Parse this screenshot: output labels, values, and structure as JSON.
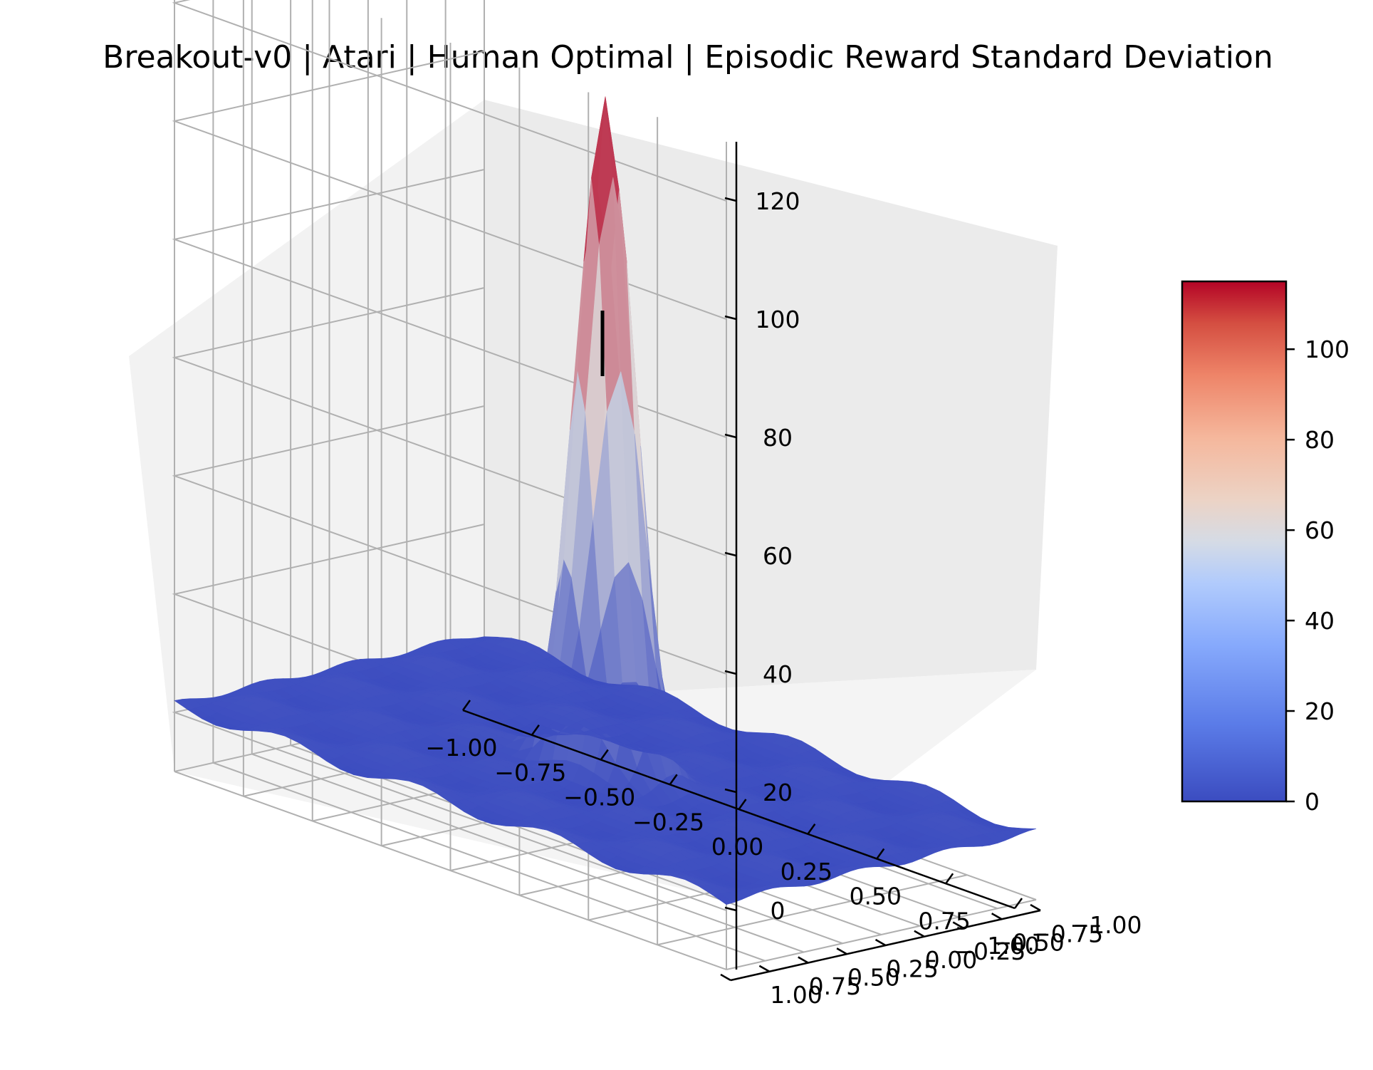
{
  "chart_data": {
    "type": "surface",
    "title": "Breakout-v0 | Atari | Human Optimal | Episodic Reward Standard Deviation",
    "colormap": "coolwarm",
    "colormap_low": "#3b4cc0",
    "colormap_mid": "#dddddd",
    "colormap_high": "#b40426",
    "xlim": [
      -1,
      1
    ],
    "ylim": [
      -1,
      1
    ],
    "zlim": [
      -10,
      130
    ],
    "x_ticks": [
      "−1.00",
      "−0.75",
      "−0.50",
      "−0.25",
      "0.00",
      "0.25",
      "0.50",
      "0.75",
      "1.00"
    ],
    "y_ticks": [
      "−1.00",
      "−0.75",
      "−0.50",
      "−0.25",
      "0.00",
      "0.25",
      "0.50",
      "0.75",
      "1.00"
    ],
    "z_ticks": [
      "0",
      "20",
      "40",
      "60",
      "80",
      "100",
      "120"
    ],
    "colorbar": {
      "range": [
        0,
        115
      ],
      "ticks": [
        "0",
        "20",
        "40",
        "60",
        "80",
        "100"
      ]
    },
    "peak": {
      "x": 0.0,
      "y": 0.0,
      "z": 112
    },
    "baseline_z": 0,
    "marker": {
      "x": 0.0,
      "y": 0.0,
      "z_from": 105,
      "z_to": 125
    },
    "grid": true
  }
}
